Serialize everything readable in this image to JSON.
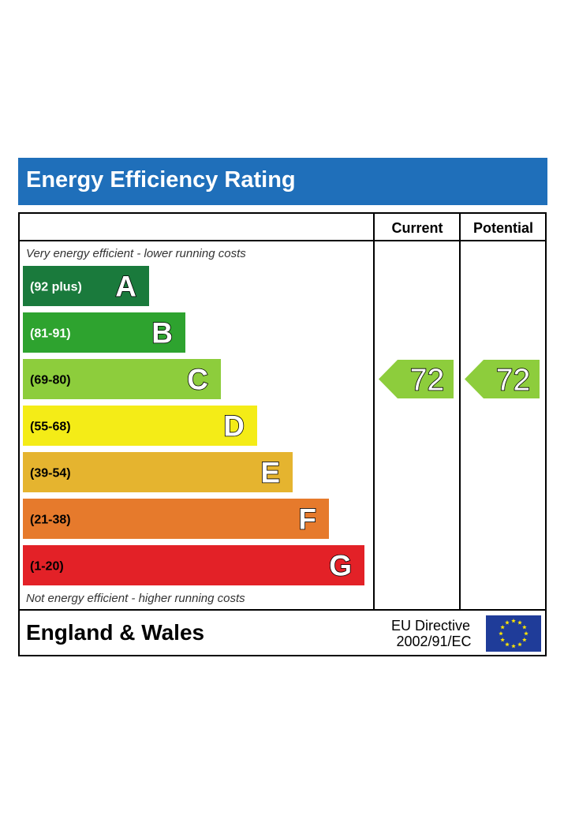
{
  "header": {
    "title": "Energy Efficiency Rating"
  },
  "columns": {
    "current": "Current",
    "potential": "Potential"
  },
  "captions": {
    "top": "Very energy efficient - lower running costs",
    "bottom": "Not energy efficient - higher running costs"
  },
  "footer": {
    "region": "England & Wales",
    "directive_line1": "EU Directive",
    "directive_line2": "2002/91/EC",
    "flag_icon": "eu-flag-icon"
  },
  "chart_data": {
    "type": "bar",
    "title": "Energy Efficiency Rating",
    "categories": [
      "A",
      "B",
      "C",
      "D",
      "E",
      "F",
      "G"
    ],
    "bands": [
      {
        "letter": "A",
        "range": "(92 plus)",
        "color": "#1a7a3c",
        "text_color": "#ffffff"
      },
      {
        "letter": "B",
        "range": "(81-91)",
        "color": "#2ea32f",
        "text_color": "#ffffff"
      },
      {
        "letter": "C",
        "range": "(69-80)",
        "color": "#8dcd3c",
        "text_color": "#000000"
      },
      {
        "letter": "D",
        "range": "(55-68)",
        "color": "#f4ec17",
        "text_color": "#000000"
      },
      {
        "letter": "E",
        "range": "(39-54)",
        "color": "#e5b42f",
        "text_color": "#000000"
      },
      {
        "letter": "F",
        "range": "(21-38)",
        "color": "#e67a2c",
        "text_color": "#000000"
      },
      {
        "letter": "G",
        "range": "(1-20)",
        "color": "#e32127",
        "text_color": "#000000"
      }
    ],
    "current": {
      "value": 72,
      "band": "C",
      "color": "#8dcd3c"
    },
    "potential": {
      "value": 72,
      "band": "C",
      "color": "#8dcd3c"
    }
  }
}
